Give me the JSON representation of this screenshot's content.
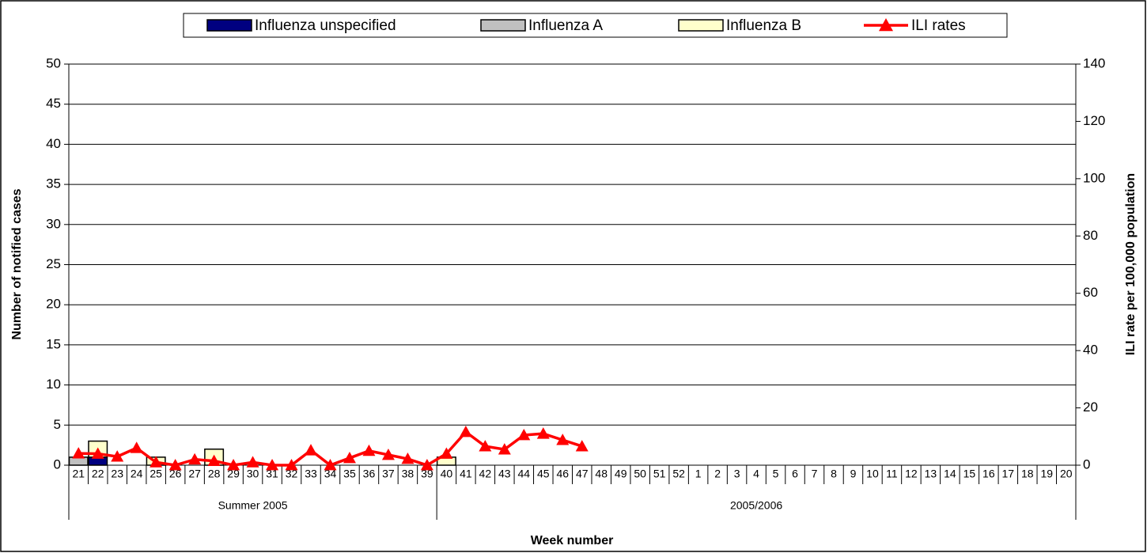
{
  "chart_data": {
    "type": "bar",
    "stacked": true,
    "grid": true,
    "legend": "top",
    "xlabel": "Week number",
    "ylabel": "Number of notified cases",
    "y2label": "ILI rate per 100,000 population",
    "categories": [
      "21",
      "22",
      "23",
      "24",
      "25",
      "26",
      "27",
      "28",
      "29",
      "30",
      "31",
      "32",
      "33",
      "34",
      "35",
      "36",
      "37",
      "38",
      "39",
      "40",
      "41",
      "42",
      "43",
      "44",
      "45",
      "46",
      "47",
      "48",
      "49",
      "50",
      "51",
      "52",
      "1",
      "2",
      "3",
      "4",
      "5",
      "6",
      "7",
      "8",
      "9",
      "10",
      "11",
      "12",
      "13",
      "14",
      "15",
      "16",
      "17",
      "18",
      "19",
      "20"
    ],
    "groups": [
      {
        "label": "Summer 2005",
        "first": "21",
        "last": "39"
      },
      {
        "label": "2005/2006",
        "first": "40",
        "last": "20"
      }
    ],
    "ylim": [
      0,
      50
    ],
    "yticks": [
      0,
      5,
      10,
      15,
      20,
      25,
      30,
      35,
      40,
      45,
      50
    ],
    "y2lim": [
      0,
      140
    ],
    "y2ticks": [
      0,
      20,
      40,
      60,
      80,
      100,
      120,
      140
    ],
    "series": [
      {
        "name": "Influenza unspecified",
        "color": "#000080",
        "values": [
          0,
          1,
          0,
          0,
          0,
          0,
          0,
          0,
          0,
          0,
          0,
          0,
          0,
          0,
          0,
          0,
          0,
          0,
          0,
          0,
          0,
          0,
          0,
          0,
          0,
          0,
          0,
          0,
          0,
          0,
          0,
          0,
          0,
          0,
          0,
          0,
          0,
          0,
          0,
          0,
          0,
          0,
          0,
          0,
          0,
          0,
          0,
          0,
          0,
          0,
          0,
          0
        ]
      },
      {
        "name": "Influenza A",
        "color": "#c0c0c0",
        "values": [
          1,
          0,
          0,
          0,
          0,
          0,
          0,
          0,
          0,
          0,
          0,
          0,
          0,
          0,
          0,
          0,
          0,
          0,
          0,
          0,
          0,
          0,
          0,
          0,
          0,
          0,
          0,
          0,
          0,
          0,
          0,
          0,
          0,
          0,
          0,
          0,
          0,
          0,
          0,
          0,
          0,
          0,
          0,
          0,
          0,
          0,
          0,
          0,
          0,
          0,
          0,
          0
        ]
      },
      {
        "name": "Influenza B",
        "color": "#ffffcc",
        "values": [
          0,
          2,
          0,
          0,
          1,
          0,
          0,
          2,
          0,
          0,
          0,
          0,
          0,
          0,
          0,
          0,
          0,
          0,
          0,
          1,
          0,
          0,
          0,
          0,
          0,
          0,
          0,
          0,
          0,
          0,
          0,
          0,
          0,
          0,
          0,
          0,
          0,
          0,
          0,
          0,
          0,
          0,
          0,
          0,
          0,
          0,
          0,
          0,
          0,
          0,
          0,
          0
        ]
      },
      {
        "name": "ILI rates",
        "color": "#ff0000",
        "type": "line",
        "axis": "y2",
        "values": [
          4.1,
          4,
          3,
          6,
          1,
          0,
          2,
          1.5,
          0,
          1,
          0,
          0,
          5.2,
          0,
          2.5,
          5,
          3.6,
          2.2,
          0,
          4,
          11.6,
          6.6,
          5.5,
          10.5,
          11,
          8.8,
          6.6,
          null,
          null,
          null,
          null,
          null,
          null,
          null,
          null,
          null,
          null,
          null,
          null,
          null,
          null,
          null,
          null,
          null,
          null,
          null,
          null,
          null,
          null,
          null,
          null,
          null
        ]
      }
    ]
  }
}
